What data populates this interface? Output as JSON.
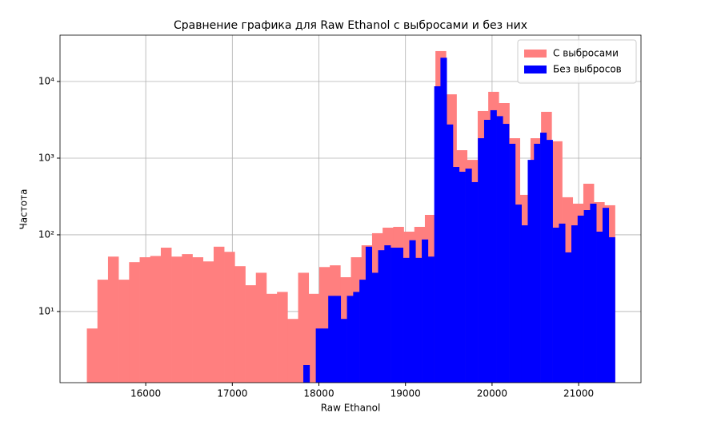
{
  "chart_data": {
    "type": "histogram",
    "title": "Сравнение графика для Raw Ethanol с выбросами и без них",
    "xlabel": "Raw Ethanol",
    "ylabel": "Частота",
    "xlim": [
      15010,
      21720
    ],
    "ylim": [
      1.18,
      40200
    ],
    "yscale": "log",
    "grid": true,
    "legend": "upper right",
    "xticks": [
      16000,
      17000,
      18000,
      19000,
      20000,
      21000
    ],
    "yticks": [
      {
        "value": 10,
        "label": "10¹"
      },
      {
        "value": 100,
        "label": "10²"
      },
      {
        "value": 1000,
        "label": "10³"
      },
      {
        "value": 10000,
        "label": "10⁴"
      }
    ],
    "series": [
      {
        "name": "С выбросами",
        "color": "#ff7f7f",
        "bins": [
          15320,
          15442,
          15564,
          15686,
          15808,
          15930,
          16052,
          16174,
          16296,
          16418,
          16540,
          16662,
          16784,
          16906,
          17028,
          17150,
          17272,
          17394,
          17516,
          17638,
          17760,
          17882,
          18004,
          18126,
          18248,
          18370,
          18492,
          18614,
          18736,
          18858,
          18980,
          19102,
          19224,
          19346,
          19468,
          19590,
          19712,
          19834,
          19956,
          20078,
          20200,
          20322,
          20444,
          20566,
          20688,
          20810,
          20932,
          21054,
          21176,
          21298,
          21420
        ],
        "values": [
          6,
          26,
          52,
          26,
          44,
          51,
          53,
          68,
          52,
          56,
          51,
          45,
          70,
          60,
          39,
          22,
          32,
          17,
          18,
          8,
          32,
          17,
          38,
          40,
          28,
          51,
          73,
          105,
          124,
          127,
          110,
          127,
          182,
          24900,
          6800,
          1270,
          950,
          4120,
          7330,
          5230,
          1820,
          332,
          1820,
          4020,
          1660,
          309,
          255,
          464,
          267,
          243
        ]
      },
      {
        "name": "Без выбросов",
        "color": "#0000ff",
        "bins": [
          17820,
          17892,
          17964,
          18036,
          18108,
          18180,
          18252,
          18324,
          18396,
          18468,
          18540,
          18612,
          18684,
          18756,
          18828,
          18900,
          18972,
          19044,
          19116,
          19188,
          19260,
          19332,
          19404,
          19476,
          19548,
          19620,
          19692,
          19764,
          19836,
          19908,
          19980,
          20052,
          20124,
          20196,
          20268,
          20340,
          20412,
          20484,
          20556,
          20628,
          20700,
          20772,
          20844,
          20916,
          20988,
          21060,
          21132,
          21204,
          21276,
          21348,
          21420
        ],
        "values": [
          2,
          0,
          6,
          6,
          16,
          16,
          8,
          16,
          18,
          26,
          70,
          32,
          63,
          73,
          68,
          68,
          50,
          85,
          50,
          87,
          52,
          8660,
          20400,
          2750,
          767,
          665,
          730,
          487,
          1820,
          3160,
          4220,
          3530,
          2800,
          1540,
          248,
          133,
          950,
          1540,
          2150,
          1730,
          124,
          140,
          59,
          133,
          178,
          210,
          255,
          110,
          225,
          93
        ]
      }
    ]
  }
}
